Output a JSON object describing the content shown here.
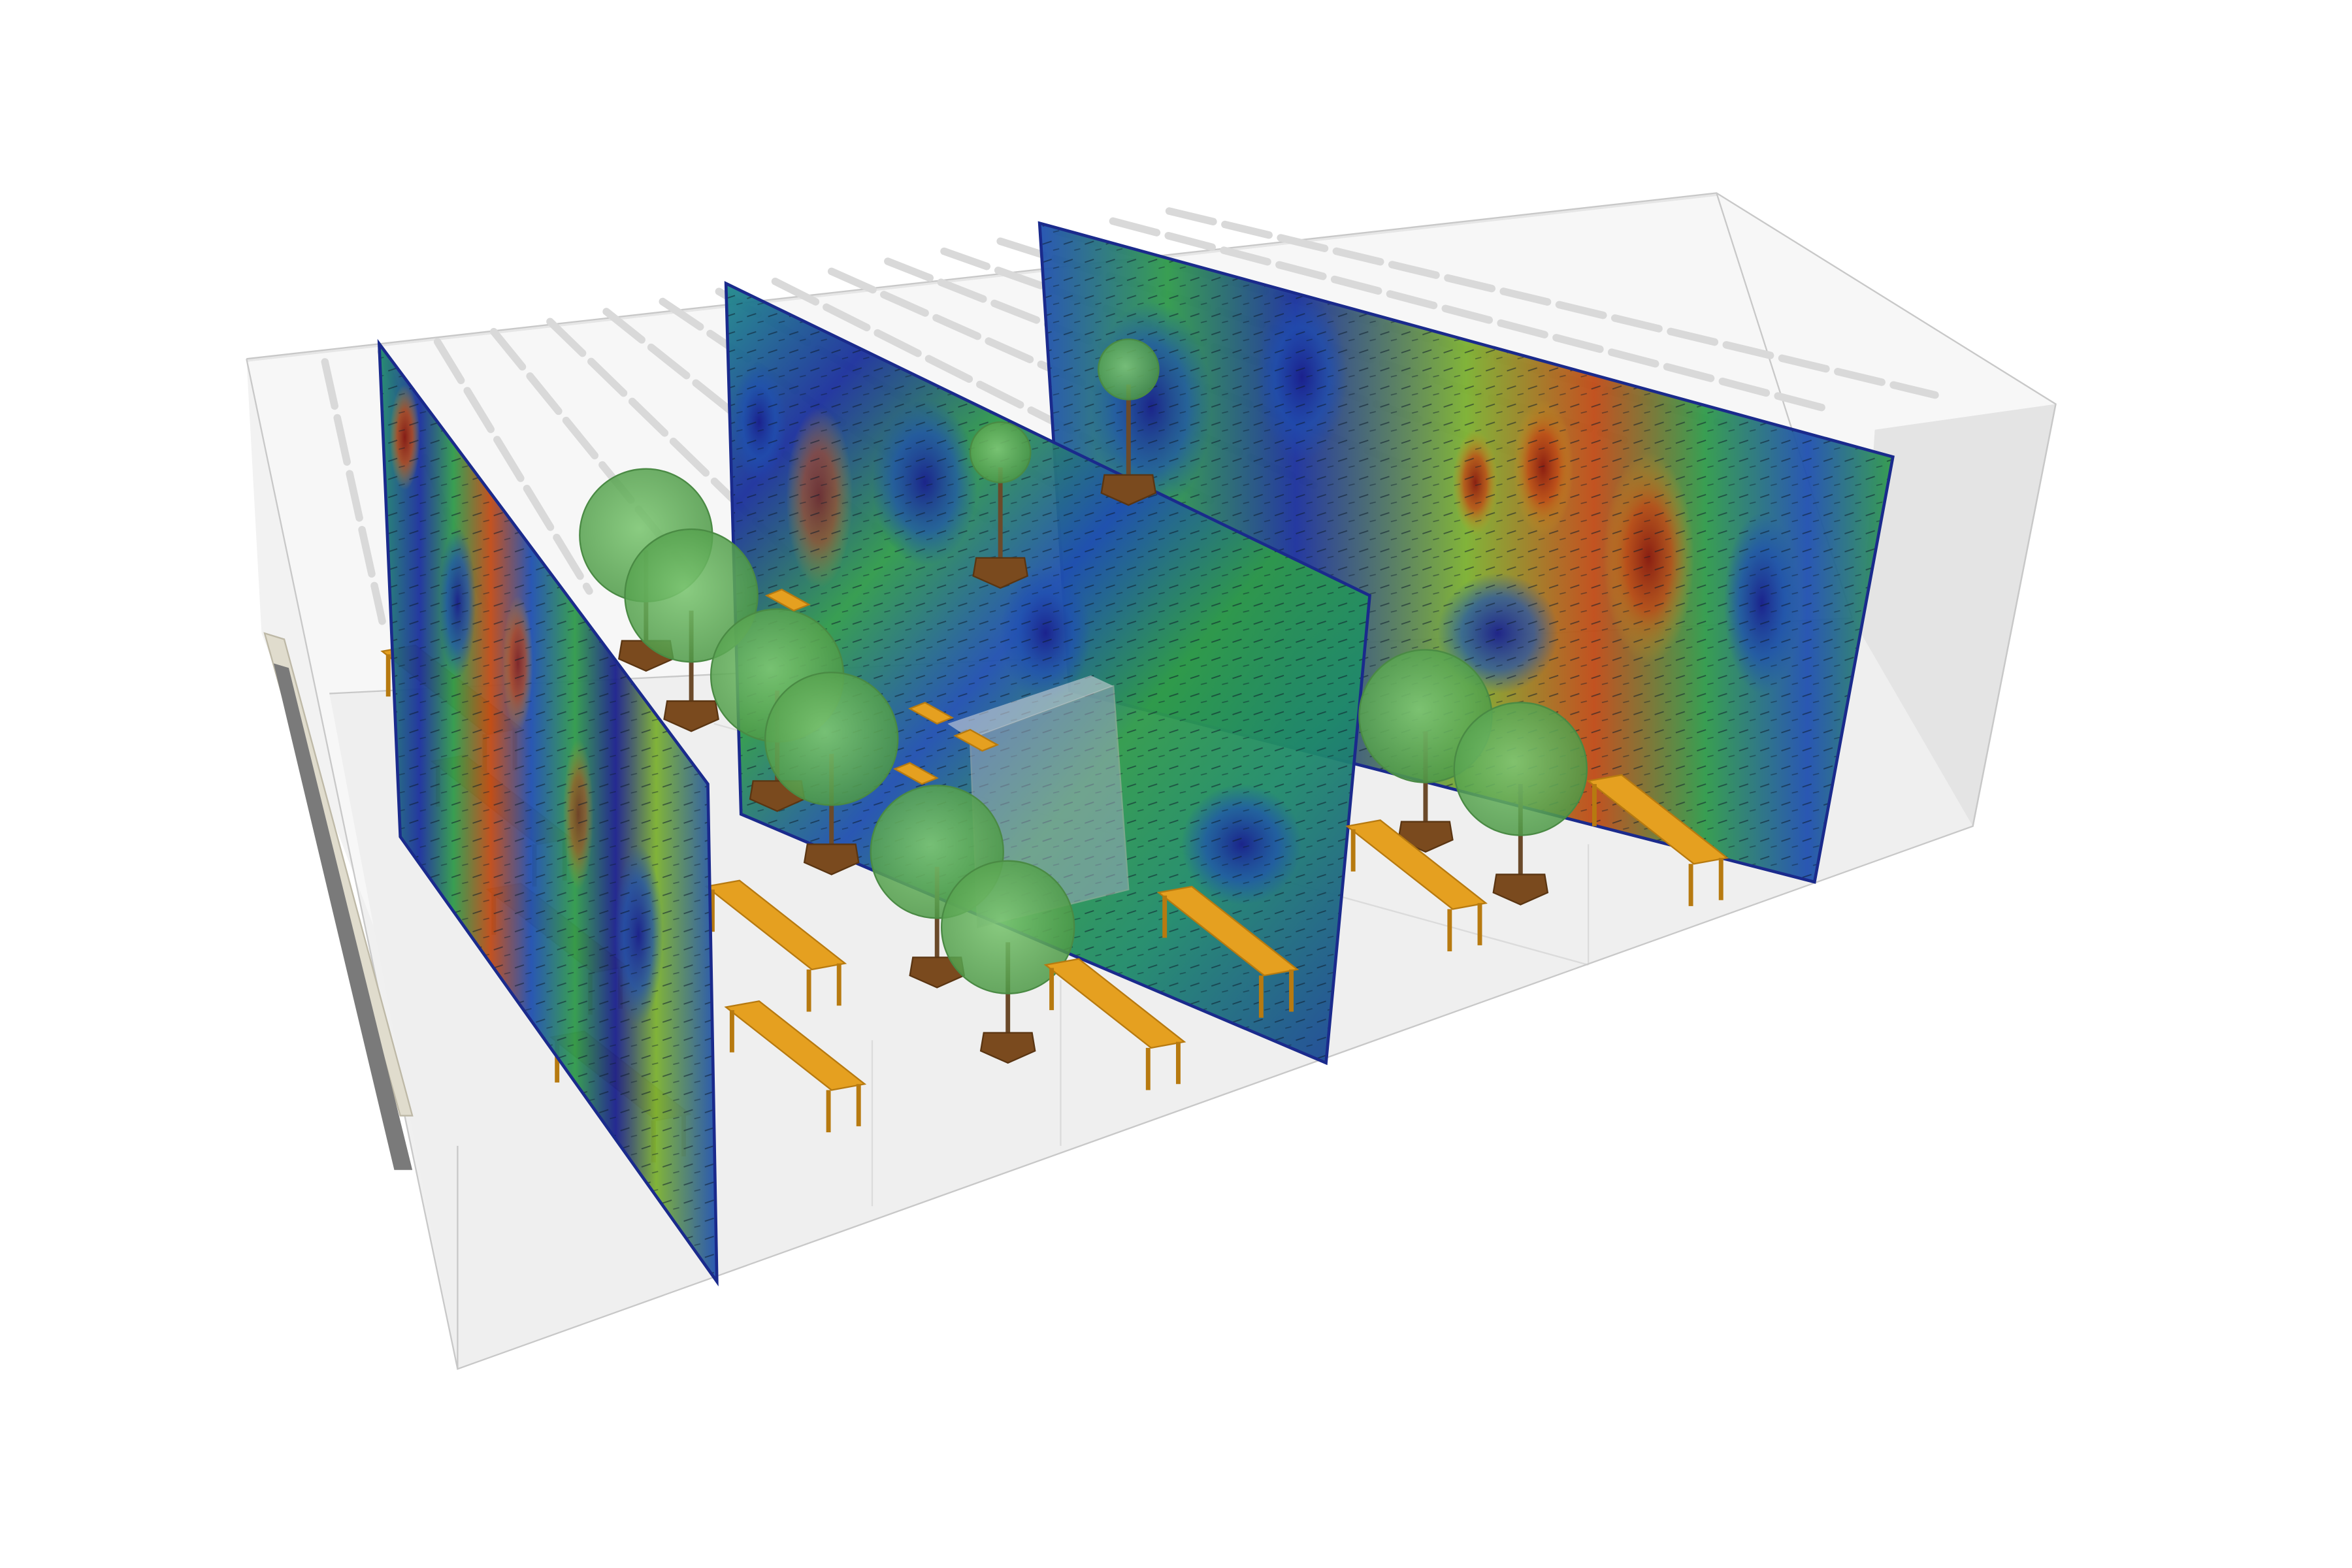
{
  "scene": {
    "kind": "cfd-room-visualization",
    "colormap": [
      "#1a1f8c",
      "#1f4fb0",
      "#1f8a8a",
      "#2f9a4a",
      "#7bb030",
      "#c9a020",
      "#c04a16",
      "#8a1a10"
    ],
    "colors": {
      "room_fill": "#e6e6e6",
      "room_edge": "#c8c8c8",
      "floor": "#eeeeee",
      "bench_top": "#e5a020",
      "bench_leg": "#b77a10",
      "tree_canopy": "#62b35a",
      "tree_pot": "#7a4a1e",
      "light_fixture": "#d9d9d9",
      "door_frame": "#e0dccd",
      "door_panel": "#7a7a7a"
    },
    "objects": {
      "velocity_planes": 3,
      "benches": 14,
      "trees": 10,
      "ceiling_lights": 16
    }
  }
}
